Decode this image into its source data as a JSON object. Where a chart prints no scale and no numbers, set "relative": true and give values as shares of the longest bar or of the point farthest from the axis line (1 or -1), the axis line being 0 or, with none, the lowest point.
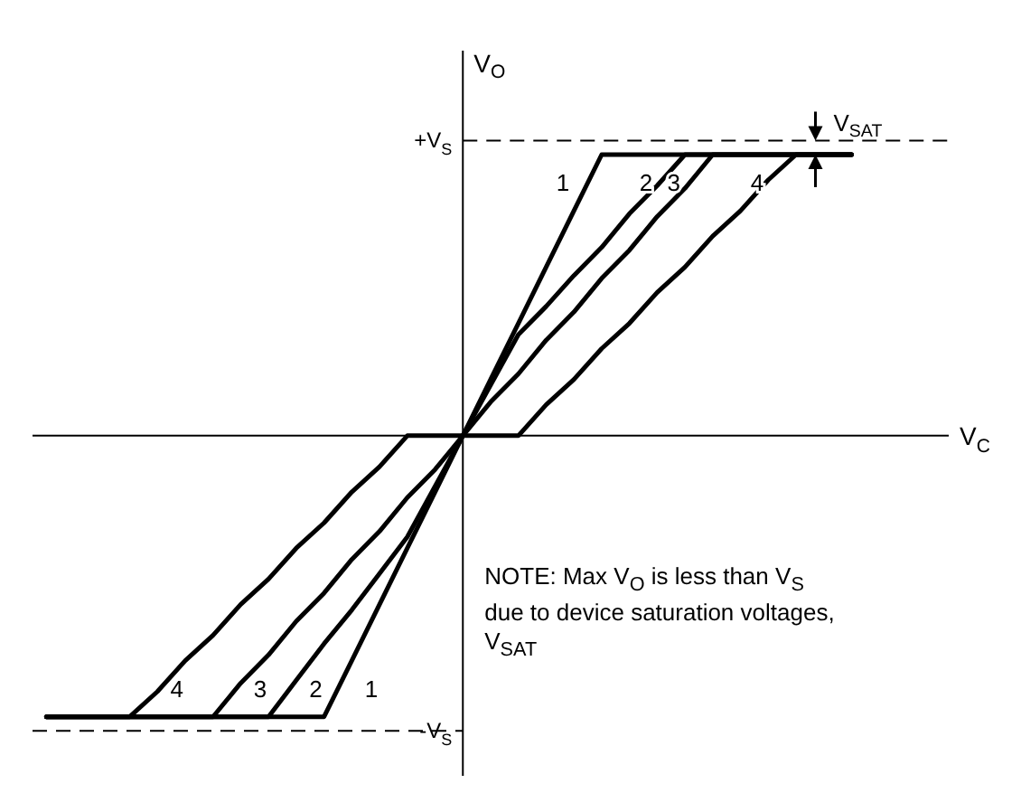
{
  "chart_data": {
    "type": "line",
    "relative": true,
    "xlabel": "V$_{C}$",
    "ylabel": "V$_{O}$",
    "categories": [
      null,
      null,
      null,
      null,
      null,
      null,
      null,
      null,
      null,
      null,
      null,
      null,
      null,
      null,
      null,
      null,
      null,
      null,
      null,
      null,
      null,
      null,
      null,
      null,
      null,
      null,
      null,
      null,
      null,
      null
    ],
    "line_style": "solid",
    "marker": "none",
    "ref_lines": [
      {
        "axis": "y",
        "value": 1.05,
        "label": "+V$_{S}$",
        "color": "#000000",
        "line_style": "dashed"
      },
      {
        "axis": "y",
        "value": -1.05,
        "label": "-V$_{S}$",
        "color": "#000000",
        "line_style": "dashed"
      }
    ],
    "annotations": [
      "V$_{SAT}$",
      "NOTE: Max  V$_{O}$ is less than V$_{S}$ due to device saturation voltages, V$_{SAT}$"
    ],
    "series": [
      {
        "name": "1",
        "color": "#000000",
        "values": [
          -1,
          -1,
          -1,
          -1,
          -1,
          -1,
          -1,
          -1,
          -1,
          -1,
          -1,
          -0.8,
          -0.6,
          -0.4,
          -0.2,
          0,
          0.2,
          0.4,
          0.6,
          0.8,
          1,
          1,
          1,
          1,
          1,
          1,
          1,
          1,
          1,
          1
        ]
      },
      {
        "name": "2",
        "color": "#000000",
        "values": [
          -1,
          -1,
          -1,
          -1,
          -1,
          -1,
          -1,
          -1,
          -1,
          -0.87,
          -0.74,
          -0.62,
          -0.49,
          -0.36,
          -0.18,
          0,
          0.18,
          0.36,
          0.46,
          0.57,
          0.67,
          0.79,
          0.89,
          1,
          1,
          1,
          1,
          1,
          1,
          1
        ]
      },
      {
        "name": "3",
        "color": "#000000",
        "values": [
          -1,
          -1,
          -1,
          -1,
          -1,
          -1,
          -1,
          -0.88,
          -0.78,
          -0.66,
          -0.56,
          -0.44,
          -0.34,
          -0.22,
          -0.12,
          0,
          0.12,
          0.22,
          0.34,
          0.44,
          0.56,
          0.66,
          0.78,
          0.88,
          1,
          1,
          1,
          1,
          1,
          1
        ]
      },
      {
        "name": "4",
        "color": "#000000",
        "values": [
          -1,
          -1,
          -1,
          -1,
          -0.91,
          -0.8,
          -0.71,
          -0.6,
          -0.51,
          -0.4,
          -0.31,
          -0.2,
          -0.11,
          0,
          0,
          0,
          0,
          0,
          0.11,
          0.2,
          0.31,
          0.4,
          0.51,
          0.6,
          0.71,
          0.8,
          0.91,
          1,
          1,
          1
        ]
      }
    ]
  }
}
